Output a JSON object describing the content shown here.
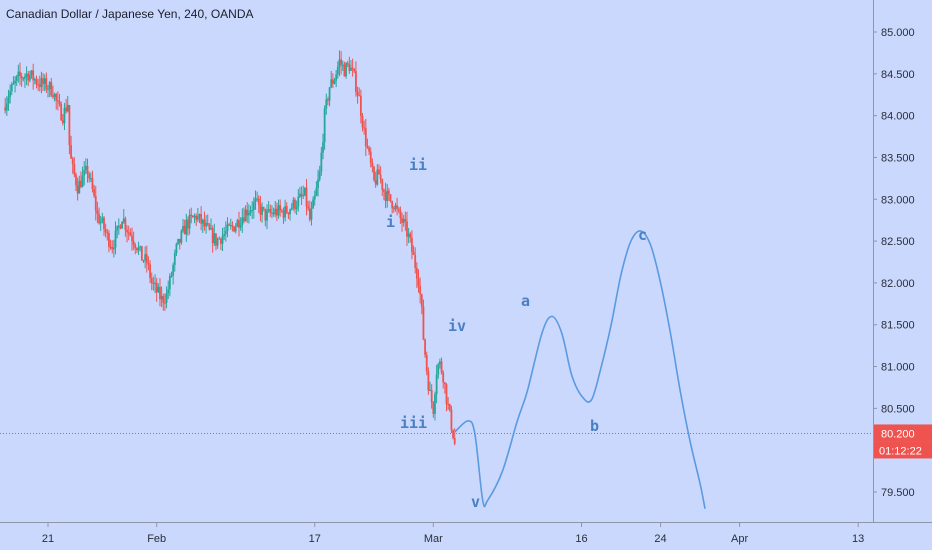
{
  "chart_data": {
    "type": "candlestick",
    "title": "Canadian Dollar / Japanese Yen, 240, OANDA",
    "ylim": [
      79.18,
      85.18
    ],
    "y_ticks": [
      "85.000",
      "84.500",
      "84.000",
      "83.500",
      "83.000",
      "82.500",
      "82.000",
      "81.500",
      "81.000",
      "80.500",
      "79.500"
    ],
    "x_ticks": [
      {
        "label": "21",
        "d": 0
      },
      {
        "label": "Feb",
        "d": 11
      },
      {
        "label": "17",
        "d": 27
      },
      {
        "label": "Mar",
        "d": 39
      },
      {
        "label": "16",
        "d": 54
      },
      {
        "label": "24",
        "d": 62
      },
      {
        "label": "Apr",
        "d": 70
      },
      {
        "label": "13",
        "d": 82
      }
    ],
    "candle_anchors": [
      [
        -4.5,
        84.1
      ],
      [
        -4,
        84.25
      ],
      [
        -3,
        84.45
      ],
      [
        -2,
        84.5
      ],
      [
        -1,
        84.4
      ],
      [
        0,
        84.35
      ],
      [
        0.5,
        84.3
      ],
      [
        1,
        84.1
      ],
      [
        1.5,
        84.0
      ],
      [
        2,
        84.15
      ],
      [
        2.2,
        83.55
      ],
      [
        2.5,
        83.35
      ],
      [
        3,
        83.15
      ],
      [
        3.5,
        83.25
      ],
      [
        4,
        83.35
      ],
      [
        4.5,
        83.1
      ],
      [
        5,
        82.8
      ],
      [
        5.5,
        82.7
      ],
      [
        6,
        82.55
      ],
      [
        6.5,
        82.45
      ],
      [
        7,
        82.6
      ],
      [
        7.5,
        82.8
      ],
      [
        8,
        82.65
      ],
      [
        9,
        82.45
      ],
      [
        9.5,
        82.3
      ],
      [
        10,
        82.25
      ],
      [
        10.5,
        82.0
      ],
      [
        11,
        81.9
      ],
      [
        11.5,
        81.8
      ],
      [
        12,
        81.85
      ],
      [
        12.5,
        82.1
      ],
      [
        13,
        82.4
      ],
      [
        13.5,
        82.55
      ],
      [
        14,
        82.7
      ],
      [
        15,
        82.8
      ],
      [
        16,
        82.65
      ],
      [
        17,
        82.5
      ],
      [
        18,
        82.6
      ],
      [
        19,
        82.7
      ],
      [
        20,
        82.85
      ],
      [
        21,
        82.95
      ],
      [
        22,
        82.8
      ],
      [
        23,
        82.85
      ],
      [
        24,
        82.85
      ],
      [
        25,
        82.95
      ],
      [
        26,
        83.05
      ],
      [
        26.5,
        82.75
      ],
      [
        27,
        83.0
      ],
      [
        27.5,
        83.3
      ],
      [
        28,
        84.0
      ],
      [
        28.5,
        84.35
      ],
      [
        29,
        84.45
      ],
      [
        29.5,
        84.65
      ],
      [
        30,
        84.55
      ],
      [
        30.5,
        84.6
      ],
      [
        31,
        84.45
      ],
      [
        31.5,
        84.2
      ],
      [
        32,
        83.8
      ],
      [
        32.5,
        83.5
      ],
      [
        33,
        83.2
      ],
      [
        33.5,
        83.3
      ],
      [
        34,
        83.1
      ],
      [
        34.5,
        83.0
      ],
      [
        35,
        82.95
      ],
      [
        35.5,
        82.8
      ],
      [
        36,
        82.7
      ],
      [
        36.5,
        82.55
      ],
      [
        37,
        82.3
      ],
      [
        37.5,
        82.05
      ],
      [
        37.8,
        81.7
      ],
      [
        38,
        81.35
      ],
      [
        38.3,
        81.0
      ],
      [
        38.6,
        80.7
      ],
      [
        39,
        80.5
      ],
      [
        39.3,
        80.95
      ],
      [
        39.6,
        81.05
      ],
      [
        40,
        80.9
      ],
      [
        40.3,
        80.65
      ],
      [
        40.6,
        80.45
      ],
      [
        41,
        80.2
      ],
      [
        41.2,
        80.05
      ]
    ],
    "projection": [
      [
        41.2,
        80.22
      ],
      [
        42.5,
        80.35
      ],
      [
        43.2,
        80.2
      ],
      [
        44,
        79.4
      ],
      [
        44.5,
        79.4
      ],
      [
        46,
        79.75
      ],
      [
        47.5,
        80.35
      ],
      [
        48.5,
        80.7
      ],
      [
        50,
        81.4
      ],
      [
        51,
        81.6
      ],
      [
        52,
        81.4
      ],
      [
        53,
        80.9
      ],
      [
        54,
        80.65
      ],
      [
        55,
        80.6
      ],
      [
        56,
        81.0
      ],
      [
        57,
        81.5
      ],
      [
        58,
        82.1
      ],
      [
        59,
        82.5
      ],
      [
        60,
        82.62
      ],
      [
        61,
        82.45
      ],
      [
        62,
        82.0
      ],
      [
        63,
        81.4
      ],
      [
        64,
        80.7
      ],
      [
        65,
        80.1
      ],
      [
        66,
        79.6
      ],
      [
        66.5,
        79.3
      ]
    ],
    "wave_labels": [
      "ii",
      "i",
      "iv",
      "iii",
      "v",
      "a",
      "b",
      "c"
    ],
    "last_price": "80.200",
    "countdown": "01:12:22",
    "colors": {
      "background": "#cad8fe",
      "up": "#26a69a",
      "down": "#ef5350",
      "projection": "#5b9ae0",
      "wave_text": "#4a7fc4",
      "price_badge": "#ef5350",
      "dotted_line": "#ef5350",
      "axis_text": "#2a2e39"
    }
  }
}
